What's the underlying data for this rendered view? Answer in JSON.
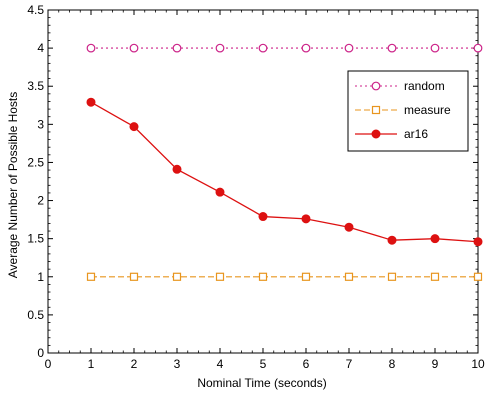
{
  "chart_data": {
    "type": "line",
    "title": "",
    "xlabel": "Nominal Time (seconds)",
    "ylabel": "Average Number of Possible Hosts",
    "xlim": [
      0,
      10
    ],
    "ylim": [
      0,
      4.5
    ],
    "x_ticks": [
      0,
      1,
      2,
      3,
      4,
      5,
      6,
      7,
      8,
      9,
      10
    ],
    "y_ticks": [
      0,
      0.5,
      1,
      1.5,
      2,
      2.5,
      3,
      3.5,
      4,
      4.5
    ],
    "x_tick_labels": [
      "0",
      "1",
      "2",
      "3",
      "4",
      "5",
      "6",
      "7",
      "8",
      "9",
      "10"
    ],
    "y_tick_labels": [
      "0",
      "0.5",
      "1",
      "1.5",
      "2",
      "2.5",
      "3",
      "3.5",
      "4",
      "4.5"
    ],
    "grid": false,
    "legend_placement": "right",
    "x": [
      1,
      2,
      3,
      4,
      5,
      6,
      7,
      8,
      9,
      10
    ],
    "series": [
      {
        "name": "random",
        "values": [
          4,
          4,
          4,
          4,
          4,
          4,
          4,
          4,
          4,
          4
        ],
        "color": "#cc2288",
        "marker": "circle-open",
        "line_style": "dotted"
      },
      {
        "name": "measure",
        "values": [
          1,
          1,
          1,
          1,
          1,
          1,
          1,
          1,
          1,
          1
        ],
        "color": "#e8951e",
        "marker": "square-open",
        "line_style": "dashed"
      },
      {
        "name": "ar16",
        "values": [
          3.29,
          2.97,
          2.41,
          2.11,
          1.79,
          1.76,
          1.65,
          1.48,
          1.5,
          1.46
        ],
        "color": "#dd1111",
        "marker": "circle-filled",
        "line_style": "solid"
      }
    ]
  }
}
